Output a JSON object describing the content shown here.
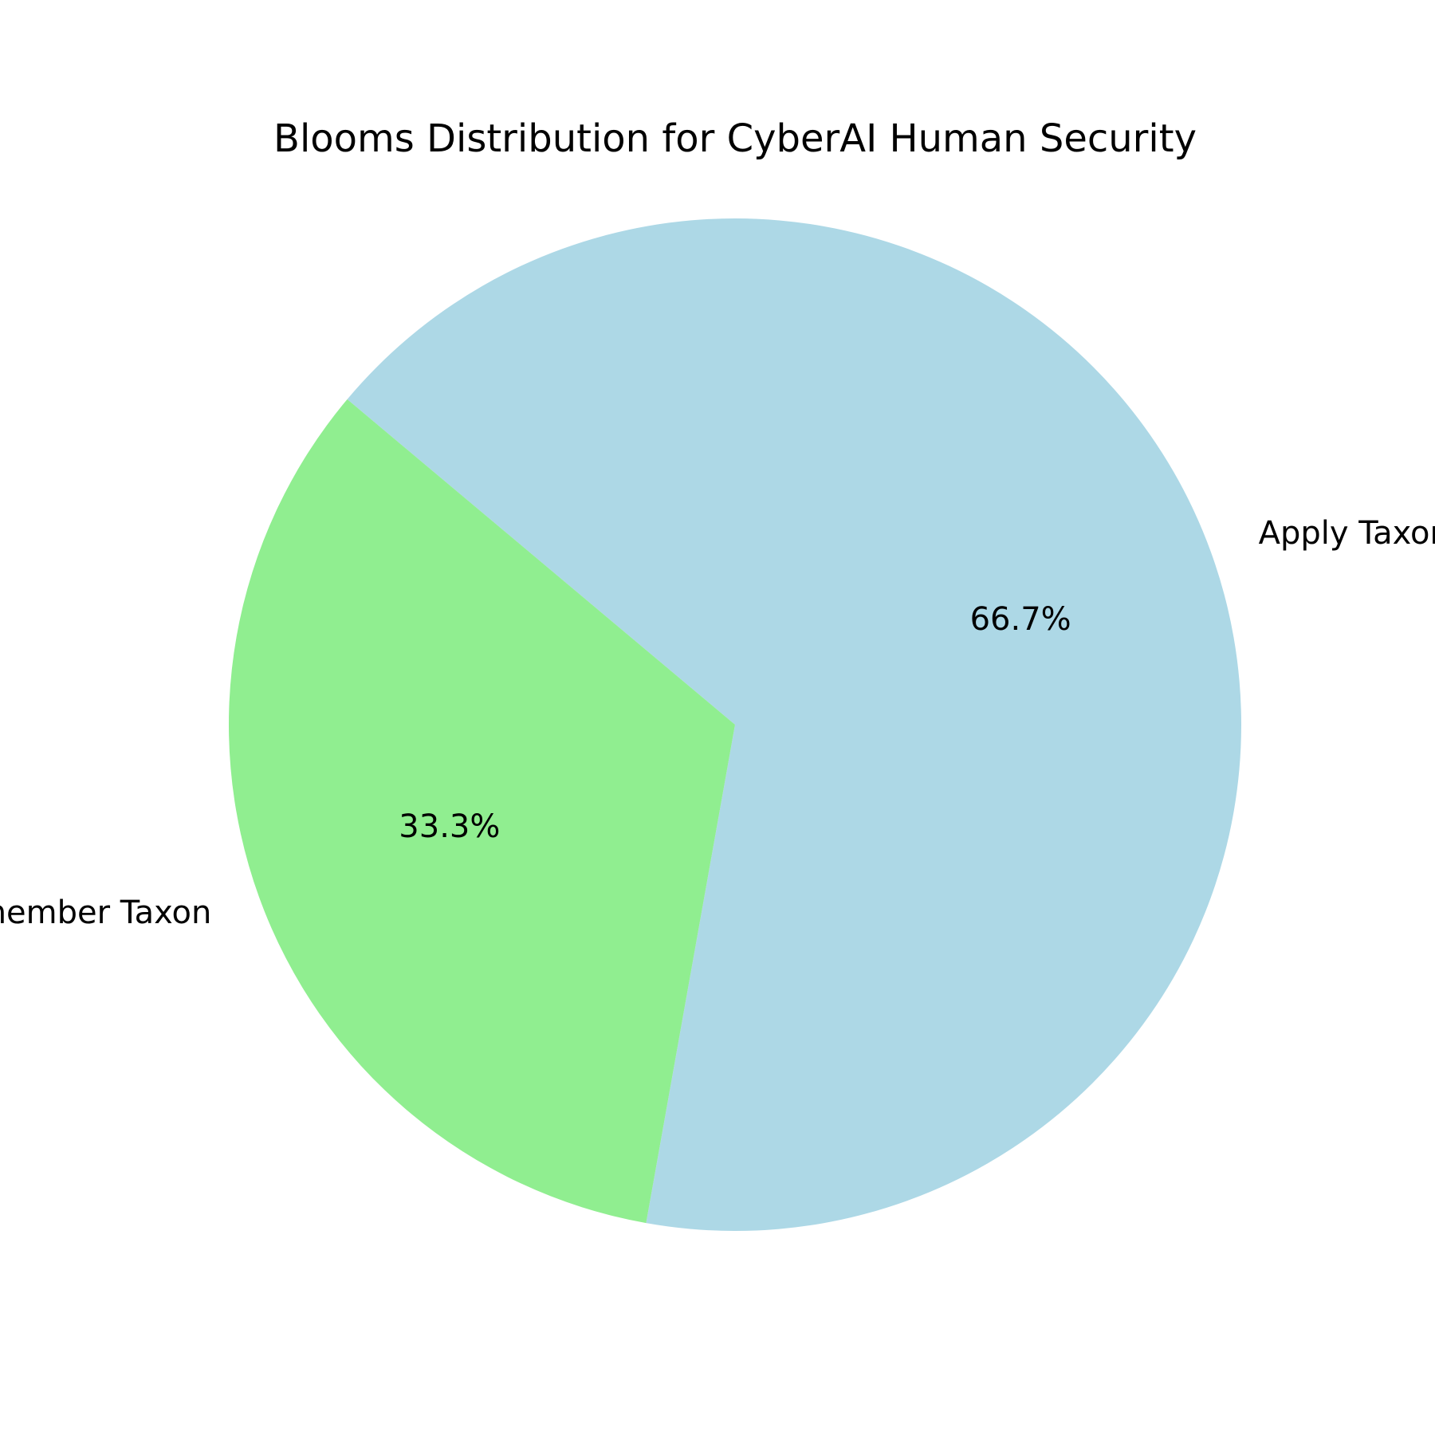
{
  "chart_data": {
    "type": "pie",
    "title": "Blooms Distribution for CyberAI Human Security",
    "slices": [
      {
        "label": "Apply Taxon",
        "value": 66.7,
        "pct_label": "66.7%",
        "color": "#add8e6"
      },
      {
        "label": "Remember Taxon",
        "value": 33.3,
        "pct_label": "33.3%",
        "color": "#90ee90"
      }
    ]
  }
}
